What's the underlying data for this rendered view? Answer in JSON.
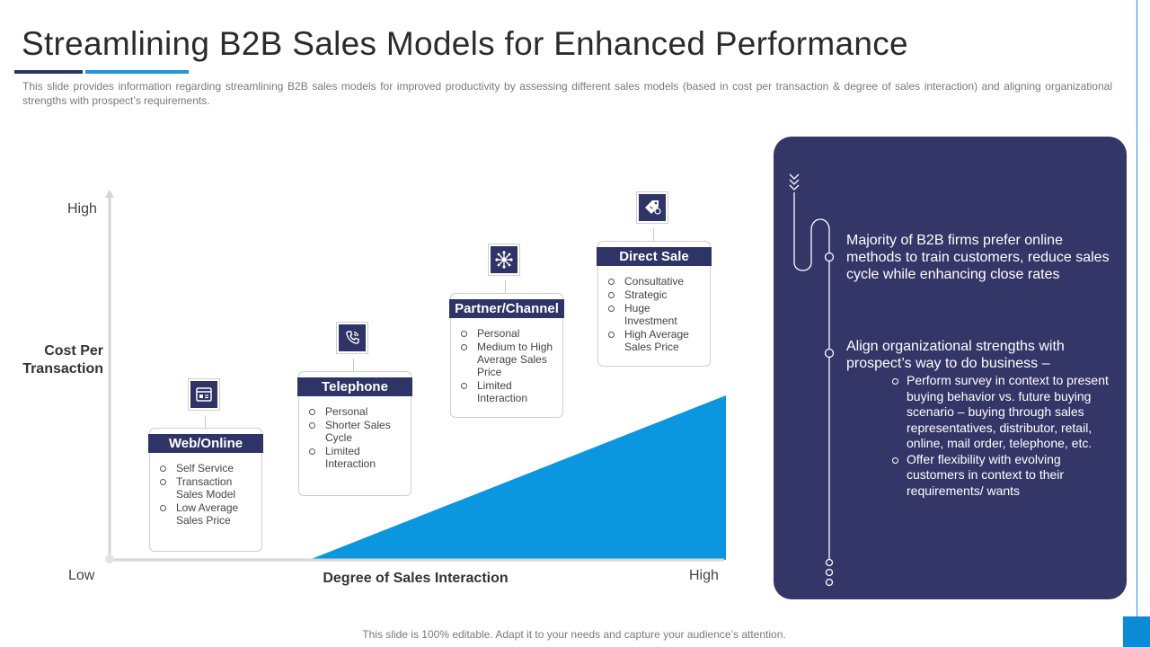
{
  "title": "Streamlining B2B Sales Models for Enhanced Performance",
  "subtitle": "This slide provides information regarding streamlining B2B sales models for improved productivity by assessing different sales models (based in cost per transaction & degree of sales interaction) and aligning organizational strengths with prospect’s requirements.",
  "chart": {
    "y_axis_title": "Cost Per Transaction",
    "x_axis_title": "Degree of Sales Interaction",
    "y_high": "High",
    "x_high": "High",
    "origin_low": "Low"
  },
  "models": [
    {
      "title": "Web/Online",
      "icon": "browser-icon",
      "points": [
        "Self Service",
        "Transaction Sales Model",
        "Low Average Sales Price"
      ]
    },
    {
      "title": "Telephone",
      "icon": "phone-icon",
      "points": [
        "Personal",
        "Shorter Sales Cycle",
        "Limited Interaction"
      ]
    },
    {
      "title": "Partner/Channel",
      "icon": "network-icon",
      "points": [
        "Personal",
        "Medium to High Average Sales Price",
        "Limited Interaction"
      ]
    },
    {
      "title": "Direct Sale",
      "icon": "price-tag-icon",
      "points": [
        "Consultative",
        "Strategic",
        "Huge Investment",
        "High Average Sales Price"
      ]
    }
  ],
  "panel": {
    "point1": "Majority of B2B firms prefer online methods to train customers, reduce sales cycle while enhancing close rates",
    "point2": "Align organizational strengths with prospect’s way to do business –",
    "sub_points": [
      "Perform survey in context to present buying behavior vs. future buying scenario – buying through sales representatives, distributor, retail, online, mail order, telephone, etc.",
      "Offer flexibility  with evolving customers in context to their requirements/ wants"
    ]
  },
  "footer": "This slide is 100% editable. Adapt it to your needs and capture your audience’s attention.",
  "colors": {
    "navy": "#2e3466",
    "panel": "#353668",
    "accent_blue": "#0b8bd6"
  }
}
